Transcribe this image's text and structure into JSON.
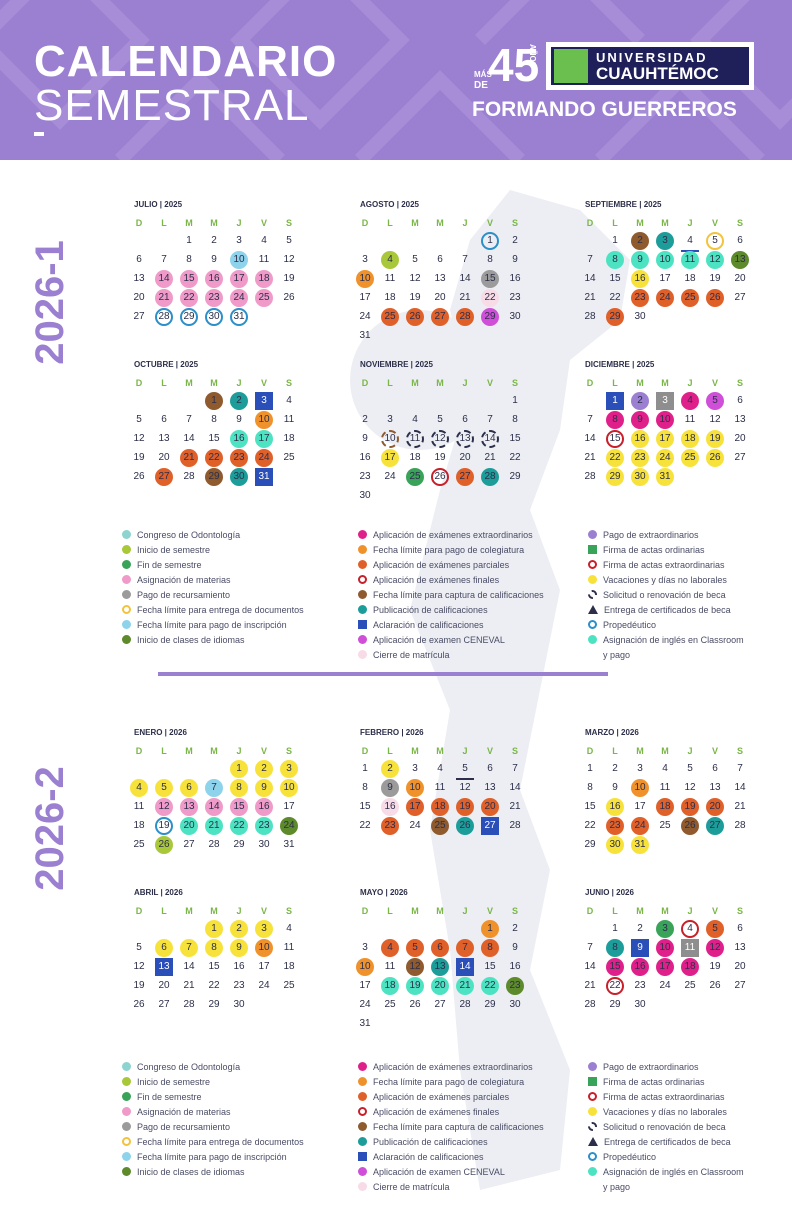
{
  "header": {
    "title_line1": "CALENDARIO",
    "title_line2": "SEMESTRAL",
    "logo": {
      "mas": "MÁS",
      "de": "DE",
      "years": "45",
      "anos": "AÑOS",
      "universidad": "UNIVERSIDAD",
      "name": "CUAUHTÉMOC"
    },
    "motto": "FORMANDO GUERREROS"
  },
  "colors": {
    "header_bg": "#9b7fd0",
    "semester_label": "#9b7fd0",
    "weekday_header": "#7ab648",
    "text": "#2d2f4a"
  },
  "semesters": [
    {
      "label": "2026-1"
    },
    {
      "label": "2026-2"
    }
  ],
  "weekdays": [
    "D",
    "L",
    "M",
    "M",
    "J",
    "V",
    "S"
  ],
  "months": [
    {
      "name": "JULIO | 2025",
      "offset": 2,
      "days": 31,
      "marks": {
        "10": {
          "c": "#8dd3ec",
          "s": "f"
        },
        "14": {
          "c": "#ef9ac8",
          "s": "f"
        },
        "15": {
          "c": "#ef9ac8",
          "s": "f"
        },
        "16": {
          "c": "#ef9ac8",
          "s": "f"
        },
        "17": {
          "c": "#ef9ac8",
          "s": "f"
        },
        "18": {
          "c": "#ef9ac8",
          "s": "f"
        },
        "21": {
          "c": "#ef9ac8",
          "s": "f"
        },
        "22": {
          "c": "#ef9ac8",
          "s": "f"
        },
        "23": {
          "c": "#ef9ac8",
          "s": "f"
        },
        "24": {
          "c": "#ef9ac8",
          "s": "f"
        },
        "25": {
          "c": "#ef9ac8",
          "s": "f"
        },
        "28": {
          "c": "#2b8fc9",
          "s": "r"
        },
        "29": {
          "c": "#2b8fc9",
          "s": "r"
        },
        "30": {
          "c": "#2b8fc9",
          "s": "r"
        },
        "31": {
          "c": "#2b8fc9",
          "s": "r"
        }
      }
    },
    {
      "name": "AGOSTO | 2025",
      "offset": 5,
      "days": 31,
      "marks": {
        "1": {
          "c": "#2b8fc9",
          "s": "r"
        },
        "4": {
          "c": "#a8c83a",
          "s": "f"
        },
        "10": {
          "c": "#f0922b",
          "s": "f"
        },
        "15": {
          "c": "#9b9b9b",
          "s": "f"
        },
        "22": {
          "c": "#f7dbe6",
          "s": "f"
        },
        "25": {
          "c": "#e0602a",
          "s": "f"
        },
        "26": {
          "c": "#e0602a",
          "s": "f"
        },
        "27": {
          "c": "#e0602a",
          "s": "f"
        },
        "28": {
          "c": "#e0602a",
          "s": "f"
        },
        "29": {
          "c": "#d04fd8",
          "s": "f"
        }
      }
    },
    {
      "name": "SEPTIEMBRE | 2025",
      "offset": 1,
      "days": 30,
      "marks": {
        "2": {
          "c": "#8e5a2e",
          "s": "f"
        },
        "3": {
          "c": "#1d9d9a",
          "s": "f"
        },
        "4": {
          "c": "#2a4fb8",
          "s": "t"
        },
        "5": {
          "c": "#f3c33b",
          "s": "r"
        },
        "8": {
          "c": "#4de3c2",
          "s": "f"
        },
        "9": {
          "c": "#4de3c2",
          "s": "f"
        },
        "10": {
          "c": "#4de3c2",
          "s": "f"
        },
        "11": {
          "c": "#4de3c2",
          "s": "f"
        },
        "12": {
          "c": "#4de3c2",
          "s": "f"
        },
        "13": {
          "c": "#5d8a2a",
          "s": "f"
        },
        "16": {
          "c": "#f7e23b",
          "s": "f"
        },
        "23": {
          "c": "#e0602a",
          "s": "f"
        },
        "24": {
          "c": "#e0602a",
          "s": "f"
        },
        "25": {
          "c": "#e0602a",
          "s": "f"
        },
        "26": {
          "c": "#e0602a",
          "s": "f"
        },
        "29": {
          "c": "#e0602a",
          "s": "f"
        }
      }
    },
    {
      "name": "OCTUBRE | 2025",
      "offset": 3,
      "days": 31,
      "marks": {
        "1": {
          "c": "#8e5a2e",
          "s": "f"
        },
        "2": {
          "c": "#1d9d9a",
          "s": "f"
        },
        "3": {
          "c": "#2a4fb8",
          "s": "q"
        },
        "10": {
          "c": "#f0922b",
          "s": "f"
        },
        "16": {
          "c": "#4de3c2",
          "s": "f"
        },
        "17": {
          "c": "#4de3c2",
          "s": "f"
        },
        "21": {
          "c": "#e0602a",
          "s": "f"
        },
        "22": {
          "c": "#e0602a",
          "s": "f"
        },
        "23": {
          "c": "#e0602a",
          "s": "f"
        },
        "24": {
          "c": "#e0602a",
          "s": "f"
        },
        "27": {
          "c": "#e0602a",
          "s": "f"
        },
        "29": {
          "c": "#8e5a2e",
          "s": "f"
        },
        "30": {
          "c": "#1d9d9a",
          "s": "f"
        },
        "31": {
          "c": "#2a4fb8",
          "s": "q"
        }
      }
    },
    {
      "name": "NOVIEMBRE | 2025",
      "offset": 6,
      "days": 30,
      "marks": {
        "10": {
          "c": "#8e5a2e",
          "s": "d"
        },
        "11": {
          "c": "#2d2f4a",
          "s": "d"
        },
        "12": {
          "c": "#2d2f4a",
          "s": "d"
        },
        "13": {
          "c": "#2d2f4a",
          "s": "d"
        },
        "14": {
          "c": "#2d2f4a",
          "s": "d"
        },
        "17": {
          "c": "#f7e23b",
          "s": "f"
        },
        "25": {
          "c": "#3aa35a",
          "s": "f"
        },
        "26": {
          "c": "#c8202a",
          "s": "r"
        },
        "27": {
          "c": "#e0602a",
          "s": "f"
        },
        "28": {
          "c": "#1d9d9a",
          "s": "f"
        }
      }
    },
    {
      "name": "DICIEMBRE | 2025",
      "offset": 1,
      "days": 31,
      "marks": {
        "1": {
          "c": "#2a4fb8",
          "s": "q"
        },
        "2": {
          "c": "#9b7fd0",
          "s": "f"
        },
        "3": {
          "c": "#8e8e8e",
          "s": "q"
        },
        "4": {
          "c": "#e0208a",
          "s": "f"
        },
        "5": {
          "c": "#d04fd8",
          "s": "f"
        },
        "8": {
          "c": "#e0208a",
          "s": "f"
        },
        "9": {
          "c": "#e0208a",
          "s": "f"
        },
        "10": {
          "c": "#e0208a",
          "s": "f"
        },
        "15": {
          "c": "#c8202a",
          "s": "r"
        },
        "16": {
          "c": "#f7e23b",
          "s": "f"
        },
        "17": {
          "c": "#f7e23b",
          "s": "f"
        },
        "18": {
          "c": "#f7e23b",
          "s": "f"
        },
        "19": {
          "c": "#f7e23b",
          "s": "f"
        },
        "22": {
          "c": "#f7e23b",
          "s": "f"
        },
        "23": {
          "c": "#f7e23b",
          "s": "f"
        },
        "24": {
          "c": "#f7e23b",
          "s": "f"
        },
        "25": {
          "c": "#f7e23b",
          "s": "f"
        },
        "26": {
          "c": "#f7e23b",
          "s": "f"
        },
        "29": {
          "c": "#f7e23b",
          "s": "f"
        },
        "30": {
          "c": "#f7e23b",
          "s": "f"
        },
        "31": {
          "c": "#f7e23b",
          "s": "f"
        }
      }
    },
    {
      "name": "ENERO | 2026",
      "offset": 4,
      "days": 31,
      "marks": {
        "1": {
          "c": "#f7e23b",
          "s": "f"
        },
        "2": {
          "c": "#f7e23b",
          "s": "f"
        },
        "3": {
          "c": "#f7e23b",
          "s": "f"
        },
        "4": {
          "c": "#f7e23b",
          "s": "f"
        },
        "5": {
          "c": "#f7e23b",
          "s": "f"
        },
        "6": {
          "c": "#f7e23b",
          "s": "f"
        },
        "7": {
          "c": "#8dd3ec",
          "s": "f"
        },
        "8": {
          "c": "#f7e23b",
          "s": "f"
        },
        "9": {
          "c": "#f7e23b",
          "s": "f"
        },
        "10": {
          "c": "#f7e23b",
          "s": "f"
        },
        "12": {
          "c": "#ef9ac8",
          "s": "f"
        },
        "13": {
          "c": "#ef9ac8",
          "s": "f"
        },
        "14": {
          "c": "#ef9ac8",
          "s": "f"
        },
        "15": {
          "c": "#ef9ac8",
          "s": "f"
        },
        "16": {
          "c": "#ef9ac8",
          "s": "f"
        },
        "19": {
          "c": "#2b8fc9",
          "s": "r"
        },
        "20": {
          "c": "#4de3c2",
          "s": "f"
        },
        "21": {
          "c": "#4de3c2",
          "s": "f"
        },
        "22": {
          "c": "#4de3c2",
          "s": "f"
        },
        "23": {
          "c": "#4de3c2",
          "s": "f"
        },
        "24": {
          "c": "#5d8a2a",
          "s": "f"
        },
        "26": {
          "c": "#a8c83a",
          "s": "f"
        }
      }
    },
    {
      "name": "FEBRERO | 2026",
      "offset": 0,
      "days": 28,
      "marks": {
        "2": {
          "c": "#f7e23b",
          "s": "f"
        },
        "5": {
          "c": "#2d2f4a",
          "s": "t"
        },
        "9": {
          "c": "#9b9b9b",
          "s": "f"
        },
        "10": {
          "c": "#f0922b",
          "s": "f"
        },
        "16": {
          "c": "#f7dbe6",
          "s": "f"
        },
        "17": {
          "c": "#e0602a",
          "s": "f"
        },
        "18": {
          "c": "#e0602a",
          "s": "f"
        },
        "19": {
          "c": "#e0602a",
          "s": "f"
        },
        "20": {
          "c": "#e0602a",
          "s": "f"
        },
        "23": {
          "c": "#e0602a",
          "s": "f"
        },
        "25": {
          "c": "#8e5a2e",
          "s": "f"
        },
        "26": {
          "c": "#1d9d9a",
          "s": "f"
        },
        "27": {
          "c": "#2a4fb8",
          "s": "q"
        }
      }
    },
    {
      "name": "MARZO | 2026",
      "offset": 0,
      "days": 31,
      "marks": {
        "10": {
          "c": "#f0922b",
          "s": "f"
        },
        "16": {
          "c": "#f7e23b",
          "s": "f"
        },
        "18": {
          "c": "#e0602a",
          "s": "f"
        },
        "19": {
          "c": "#e0602a",
          "s": "f"
        },
        "20": {
          "c": "#e0602a",
          "s": "f"
        },
        "23": {
          "c": "#e0602a",
          "s": "f"
        },
        "24": {
          "c": "#e0602a",
          "s": "f"
        },
        "26": {
          "c": "#8e5a2e",
          "s": "f"
        },
        "27": {
          "c": "#1d9d9a",
          "s": "f"
        },
        "30": {
          "c": "#f7e23b",
          "s": "f"
        },
        "31": {
          "c": "#f7e23b",
          "s": "f"
        }
      }
    },
    {
      "name": "ABRIL | 2026",
      "offset": 3,
      "days": 30,
      "marks": {
        "1": {
          "c": "#f7e23b",
          "s": "f"
        },
        "2": {
          "c": "#f7e23b",
          "s": "f"
        },
        "3": {
          "c": "#f7e23b",
          "s": "f"
        },
        "6": {
          "c": "#f7e23b",
          "s": "f"
        },
        "7": {
          "c": "#f7e23b",
          "s": "f"
        },
        "8": {
          "c": "#f7e23b",
          "s": "f"
        },
        "9": {
          "c": "#f7e23b",
          "s": "f"
        },
        "10": {
          "c": "#f0922b",
          "s": "f"
        },
        "13": {
          "c": "#2a4fb8",
          "s": "q"
        }
      }
    },
    {
      "name": "MAYO | 2026",
      "offset": 5,
      "days": 31,
      "marks": {
        "1": {
          "c": "#f0922b",
          "s": "f"
        },
        "4": {
          "c": "#e0602a",
          "s": "f"
        },
        "5": {
          "c": "#e0602a",
          "s": "f"
        },
        "6": {
          "c": "#e0602a",
          "s": "f"
        },
        "7": {
          "c": "#e0602a",
          "s": "f"
        },
        "8": {
          "c": "#e0602a",
          "s": "f"
        },
        "10": {
          "c": "#f0922b",
          "s": "f"
        },
        "12": {
          "c": "#8e5a2e",
          "s": "f"
        },
        "13": {
          "c": "#1d9d9a",
          "s": "f"
        },
        "14": {
          "c": "#2a4fb8",
          "s": "q"
        },
        "18": {
          "c": "#4de3c2",
          "s": "f"
        },
        "19": {
          "c": "#4de3c2",
          "s": "f"
        },
        "20": {
          "c": "#4de3c2",
          "s": "f"
        },
        "21": {
          "c": "#4de3c2",
          "s": "f"
        },
        "22": {
          "c": "#4de3c2",
          "s": "f"
        },
        "23": {
          "c": "#5d8a2a",
          "s": "f"
        }
      }
    },
    {
      "name": "JUNIO | 2026",
      "offset": 1,
      "days": 30,
      "marks": {
        "3": {
          "c": "#3aa35a",
          "s": "f"
        },
        "4": {
          "c": "#c8202a",
          "s": "r"
        },
        "5": {
          "c": "#e0602a",
          "s": "f"
        },
        "8": {
          "c": "#1d9d9a",
          "s": "f"
        },
        "9": {
          "c": "#2a4fb8",
          "s": "q"
        },
        "10": {
          "c": "#e0208a",
          "s": "f"
        },
        "11": {
          "c": "#8e8e8e",
          "s": "q"
        },
        "12": {
          "c": "#e0208a",
          "s": "f"
        },
        "15": {
          "c": "#e0208a",
          "s": "f"
        },
        "16": {
          "c": "#e0208a",
          "s": "f"
        },
        "17": {
          "c": "#e0208a",
          "s": "f"
        },
        "18": {
          "c": "#e0208a",
          "s": "f"
        },
        "22": {
          "c": "#c8202a",
          "s": "r"
        }
      }
    }
  ],
  "legend": {
    "col1": [
      {
        "label": "Congreso de Odontología",
        "c": "#8dd3d0",
        "s": "f"
      },
      {
        "label": "Inicio de semestre",
        "c": "#a8c83a",
        "s": "f"
      },
      {
        "label": "Fin de semestre",
        "c": "#3aa35a",
        "s": "f"
      },
      {
        "label": "Asignación de materias",
        "c": "#ef9ac8",
        "s": "f"
      },
      {
        "label": "Pago de recursamiento",
        "c": "#9b9b9b",
        "s": "f"
      },
      {
        "label": "Fecha límite para entrega de documentos",
        "c": "#f3c33b",
        "s": "r"
      },
      {
        "label": "Fecha límite para pago de inscripción",
        "c": "#8dd3ec",
        "s": "f"
      },
      {
        "label": "Inicio de clases de idiomas",
        "c": "#5d8a2a",
        "s": "f"
      }
    ],
    "col2": [
      {
        "label": "Aplicación de exámenes extraordinarios",
        "c": "#e0208a",
        "s": "f"
      },
      {
        "label": "Fecha límite para pago de colegiatura",
        "c": "#f0922b",
        "s": "f"
      },
      {
        "label": "Aplicación de exámenes parciales",
        "c": "#e0602a",
        "s": "f"
      },
      {
        "label": "Aplicación de exámenes finales",
        "c": "#c8202a",
        "s": "r"
      },
      {
        "label": "Fecha límite para captura de calificaciones",
        "c": "#8e5a2e",
        "s": "f"
      },
      {
        "label": "Publicación de calificaciones",
        "c": "#1d9d9a",
        "s": "f"
      },
      {
        "label": "Aclaración de calificaciones",
        "c": "#2a4fb8",
        "s": "q"
      },
      {
        "label": "Aplicación de examen CENEVAL",
        "c": "#d04fd8",
        "s": "f"
      },
      {
        "label": "Cierre de matrícula",
        "c": "#f7dbe6",
        "s": "f"
      }
    ],
    "col3": [
      {
        "label": "Pago de extraordinarios",
        "c": "#9b7fd0",
        "s": "f"
      },
      {
        "label": "Firma de actas ordinarias",
        "c": "#3aa35a",
        "s": "q"
      },
      {
        "label": "Firma de actas extraordinarias",
        "c": "#c8202a",
        "s": "r"
      },
      {
        "label": "Vacaciones y días no laborales",
        "c": "#f7e23b",
        "s": "f"
      },
      {
        "label": "Solicitud o renovación de beca",
        "c": "#2d2f4a",
        "s": "d"
      },
      {
        "label": "Entrega de certificados de beca",
        "c": "#2d2f4a",
        "s": "t"
      },
      {
        "label": "Propedéutico",
        "c": "#2b8fc9",
        "s": "r"
      },
      {
        "label": "Asignación de inglés en Classroom",
        "c": "#4de3c2",
        "s": "f"
      },
      {
        "label": "y pago",
        "c": "",
        "s": "n"
      }
    ]
  }
}
